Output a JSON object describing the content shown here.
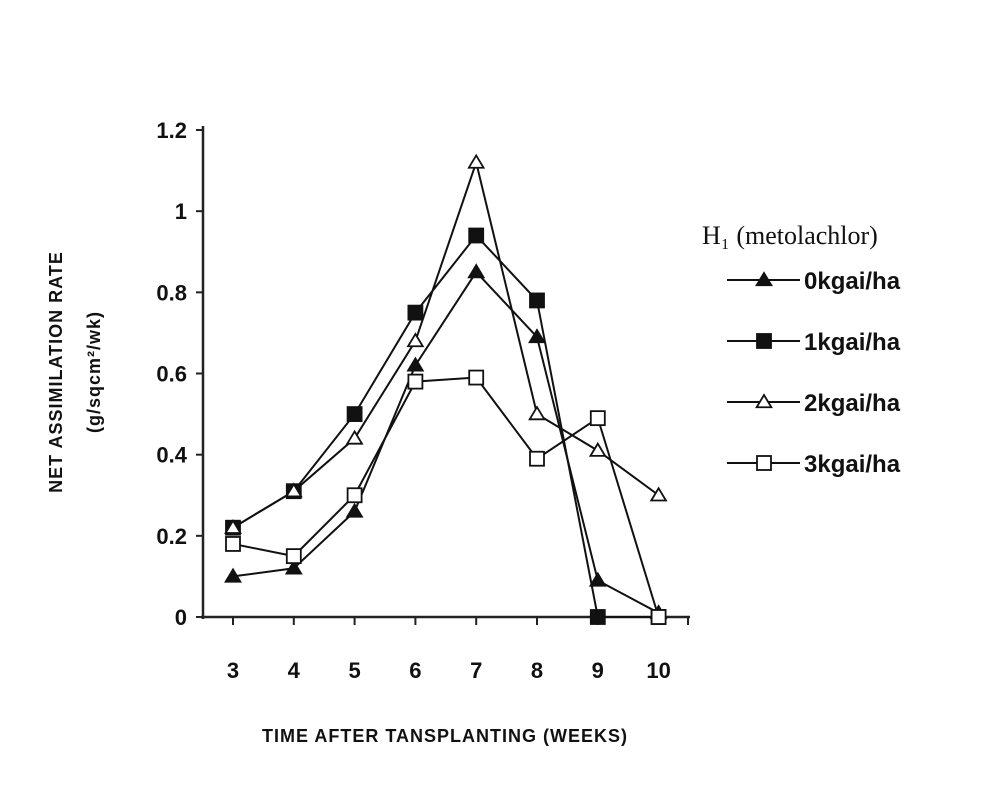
{
  "chart_data": {
    "type": "line",
    "title": "",
    "xlabel": "TIME AFTER TANSPLANTING (WEEKS)",
    "ylabel_line1": "NET ASSIMILATION RATE",
    "ylabel_line2": "(g/sqcm²/wk)",
    "x": [
      3,
      4,
      5,
      6,
      7,
      8,
      9,
      10
    ],
    "x_tick_labels": [
      "3",
      "4",
      "5",
      "6",
      "7",
      "8",
      "9",
      "10"
    ],
    "y_tick_labels": [
      "0",
      "0.2",
      "0.4",
      "0.6",
      "0.8",
      "1",
      "1.2"
    ],
    "ylim": [
      0,
      1.2
    ],
    "grid": false,
    "legend": {
      "title": "H₁ (metolachlor)",
      "placement": "right"
    },
    "series": [
      {
        "name": "0kgai/ha",
        "marker": "triangle-filled",
        "values": [
          0.1,
          0.12,
          0.26,
          0.62,
          0.85,
          0.69,
          0.09,
          0.01
        ]
      },
      {
        "name": "1kgai/ha",
        "marker": "square-filled",
        "values": [
          0.22,
          0.31,
          0.5,
          0.75,
          0.94,
          0.78,
          0.0,
          0.0
        ]
      },
      {
        "name": "2kgai/ha",
        "marker": "triangle-open",
        "values": [
          0.22,
          0.31,
          0.44,
          0.68,
          1.12,
          0.5,
          0.41,
          0.3
        ]
      },
      {
        "name": "3kgai/ha",
        "marker": "square-open",
        "values": [
          0.18,
          0.15,
          0.3,
          0.58,
          0.59,
          0.39,
          0.49,
          0.0
        ]
      }
    ]
  }
}
